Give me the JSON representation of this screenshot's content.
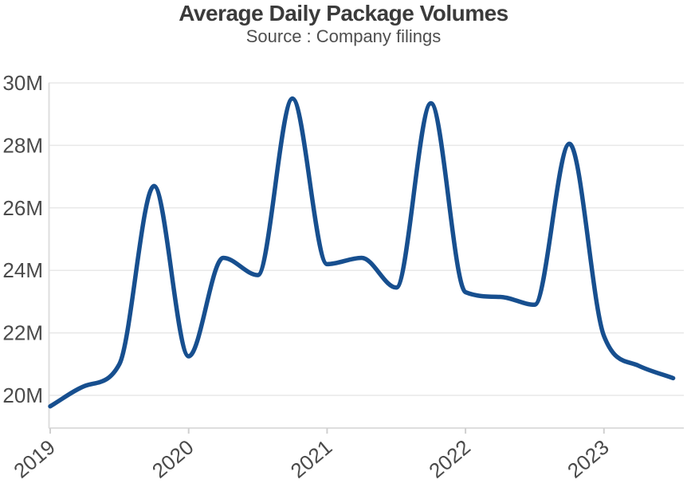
{
  "chart_data": {
    "type": "line",
    "title": "Average Daily Package Volumes",
    "subtitle": "Source : Company filings",
    "xlabel": "",
    "ylabel": "",
    "unit": "millions of packages per day",
    "x": [
      2019.0,
      2019.25,
      2019.5,
      2019.75,
      2020.0,
      2020.25,
      2020.5,
      2020.75,
      2021.0,
      2021.25,
      2021.5,
      2021.75,
      2022.0,
      2022.25,
      2022.5,
      2022.75,
      2023.0,
      2023.25,
      2023.5
    ],
    "values": [
      19.65,
      20.3,
      21.0,
      26.7,
      21.25,
      24.4,
      23.85,
      29.5,
      24.2,
      24.4,
      23.45,
      29.35,
      23.3,
      23.15,
      22.9,
      28.05,
      21.9,
      20.95,
      20.55
    ],
    "x_tick_values": [
      2019,
      2020,
      2021,
      2022,
      2023
    ],
    "x_tick_labels": [
      "2019",
      "2020",
      "2021",
      "2022",
      "2023"
    ],
    "y_tick_values": [
      20,
      22,
      24,
      26,
      28,
      30
    ],
    "y_tick_labels": [
      "20M",
      "22M",
      "24M",
      "26M",
      "28M",
      "30M"
    ],
    "ylim": [
      18.95,
      30
    ],
    "xlim": [
      2019.0,
      2023.6
    ],
    "grid": "horizontal",
    "legend": "none",
    "curve": "monotone-spline"
  },
  "colors": {
    "line": "#174f8f",
    "grid": "#e8e8e8",
    "axis": "#dedede",
    "tick": "#d0d0d0",
    "tick_label": "#4a4a4a",
    "title": "#3b3b3b",
    "subtitle": "#4e4e4e",
    "background": "#ffffff"
  }
}
